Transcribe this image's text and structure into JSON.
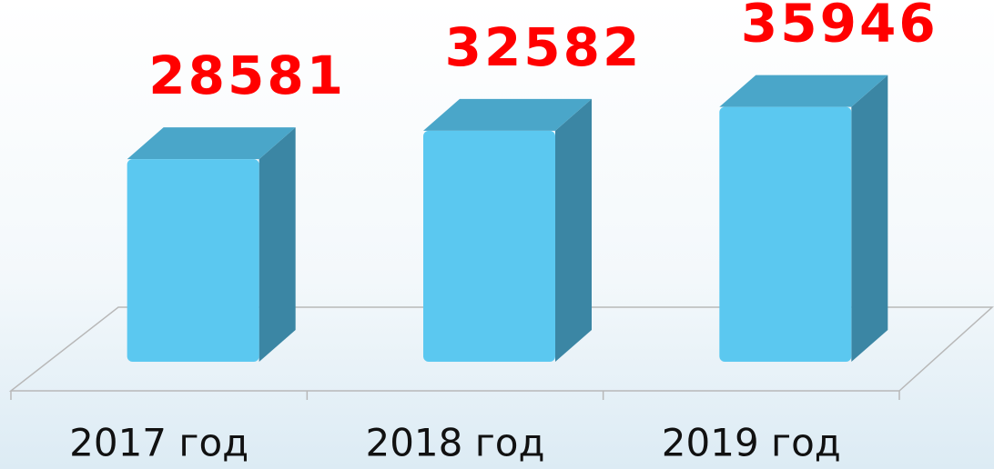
{
  "chart_data": {
    "type": "bar3d",
    "categories": [
      "2017 год",
      "2018 год",
      "2019 год"
    ],
    "values": [
      28581,
      32582,
      35946
    ],
    "color": "#5bc8f0",
    "ylim": [
      0,
      50000
    ]
  }
}
